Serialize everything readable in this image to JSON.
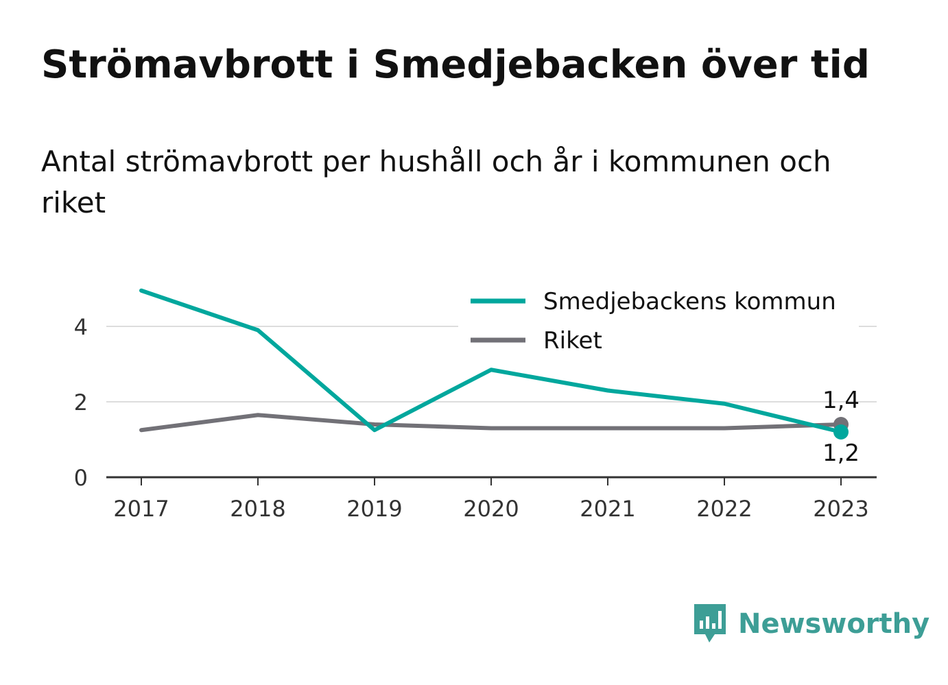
{
  "title": "Strömavbrott i Smedjebacken över tid",
  "subtitle": "Antal strömavbrott per hushåll och år i kommunen och riket",
  "brand": {
    "name": "Newsworthy",
    "icon": "bar-chart-speech-bubble-icon",
    "color": "#3d9e96"
  },
  "chart_data": {
    "type": "line",
    "x": [
      "2017",
      "2018",
      "2019",
      "2020",
      "2021",
      "2022",
      "2023"
    ],
    "ylim": [
      0,
      5
    ],
    "yticks": [
      "0",
      "2",
      "4"
    ],
    "ytick_values": [
      0,
      2,
      4
    ],
    "grid": true,
    "legend_position": "top-right",
    "series": [
      {
        "name": "Smedjebackens kommun",
        "color": "#00a79d",
        "values": [
          4.95,
          3.9,
          1.25,
          2.85,
          2.3,
          1.95,
          1.2
        ],
        "end_label": "1,2"
      },
      {
        "name": "Riket",
        "color": "#727177",
        "values": [
          1.25,
          1.65,
          1.4,
          1.3,
          1.3,
          1.3,
          1.4
        ],
        "end_label": "1,4"
      }
    ]
  }
}
